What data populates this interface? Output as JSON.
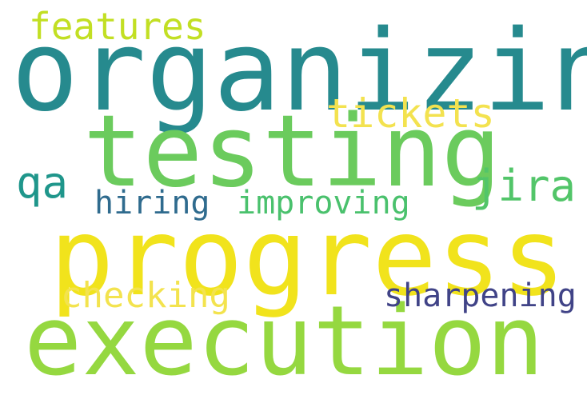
{
  "cloud": {
    "words": [
      {
        "text": "organizing",
        "color": "#268a8e"
      },
      {
        "text": "testing",
        "color": "#6bcb5d"
      },
      {
        "text": "progress",
        "color": "#f1e31c"
      },
      {
        "text": "execution",
        "color": "#95d840"
      },
      {
        "text": "features",
        "color": "#c2df23"
      },
      {
        "text": "tickets",
        "color": "#f3e24f"
      },
      {
        "text": "qa",
        "color": "#1f968b"
      },
      {
        "text": "jira",
        "color": "#52c569"
      },
      {
        "text": "hiring",
        "color": "#2f6b8e"
      },
      {
        "text": "improving",
        "color": "#4ac16d"
      },
      {
        "text": "checking",
        "color": "#f3e34e"
      },
      {
        "text": "sharpening",
        "color": "#404387"
      }
    ]
  }
}
